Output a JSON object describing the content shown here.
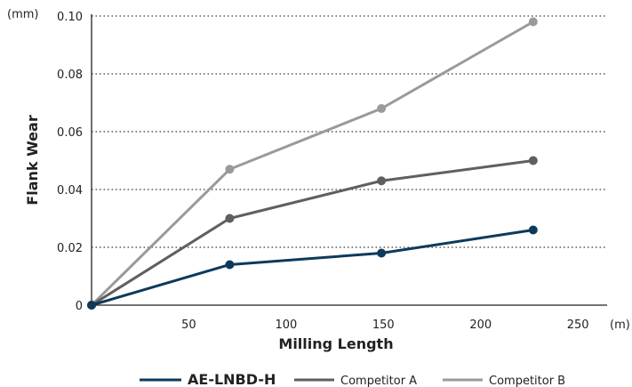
{
  "chart_data": {
    "type": "line",
    "xlabel": "Milling Length",
    "ylabel": "Flank Wear",
    "x_unit": "(m)",
    "y_unit": "(mm)",
    "xlim": [
      0,
      265
    ],
    "ylim": [
      0,
      0.1
    ],
    "x_ticks": [
      50,
      100,
      150,
      200,
      250
    ],
    "x_tick_labels": [
      "50",
      "100",
      "150",
      "200",
      "250"
    ],
    "y_ticks": [
      0,
      0.02,
      0.04,
      0.06,
      0.08,
      0.1
    ],
    "y_tick_labels": [
      "0",
      "0.02",
      "0.04",
      "0.06",
      "0.08",
      "0.10"
    ],
    "grid": "horizontal dotted",
    "legend_position": "bottom",
    "series": [
      {
        "name": "AE-LNBD-H",
        "color": "#0d3a5c",
        "x": [
          0,
          71,
          149,
          227
        ],
        "y": [
          0,
          0.014,
          0.018,
          0.026
        ]
      },
      {
        "name": "Competitor A",
        "color": "#5f5f5f",
        "x": [
          0,
          71,
          149,
          227
        ],
        "y": [
          0,
          0.03,
          0.043,
          0.05
        ]
      },
      {
        "name": "Competitor B",
        "color": "#9a9a9a",
        "x": [
          0,
          71,
          149,
          227
        ],
        "y": [
          0,
          0.047,
          0.068,
          0.098
        ]
      }
    ]
  }
}
